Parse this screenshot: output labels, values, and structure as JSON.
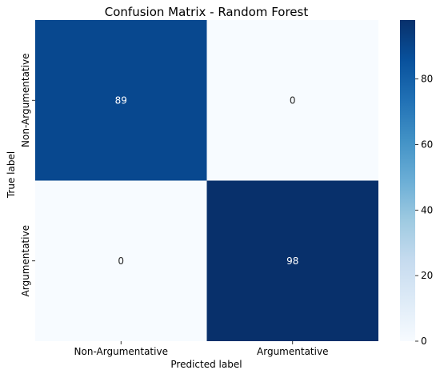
{
  "chart_data": {
    "type": "heatmap",
    "title": "Confusion Matrix - Random Forest",
    "xlabel": "Predicted label",
    "ylabel": "True label",
    "x_categories": [
      "Non-Argumentative",
      "Argumentative"
    ],
    "y_categories": [
      "Non-Argumentative",
      "Argumentative"
    ],
    "values": [
      [
        89,
        0
      ],
      [
        0,
        98
      ]
    ],
    "colormap": "Blues",
    "colorbar": {
      "range": [
        0,
        98
      ],
      "ticks": [
        0,
        20,
        40,
        60,
        80
      ]
    },
    "colors": {
      "min": "#f7fbff",
      "max": "#08306b"
    }
  }
}
